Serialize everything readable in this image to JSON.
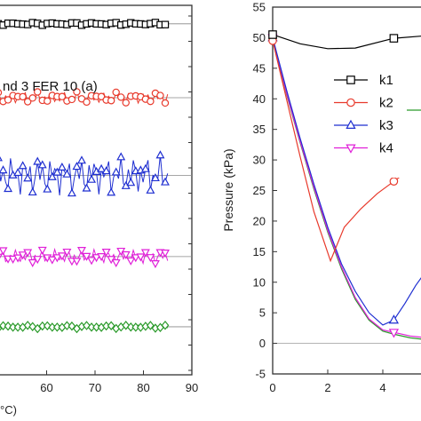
{
  "chart_data": [
    {
      "type": "scatter",
      "title": "",
      "annotation": "nd 3 FER 10 (a)",
      "xlabel": "",
      "x_label_fragment": "°C)",
      "ylabel": "",
      "xlim": [
        50,
        90
      ],
      "x_ticks": [
        60,
        70,
        80,
        90
      ],
      "x_tick_labels": [
        "60",
        "70",
        "80",
        "90"
      ],
      "series": [
        {
          "color": "#000000",
          "marker": "square",
          "level": 95,
          "amp": 0.4,
          "x_start": 50,
          "x_end": 85
        },
        {
          "color": "#e8392b",
          "marker": "circle",
          "level": 75,
          "amp": 1.6,
          "x_start": 50,
          "x_end": 85
        },
        {
          "color": "#1f2fd1",
          "marker": "triangle-up",
          "level": 54,
          "amp": 5.5,
          "x_start": 50,
          "x_end": 85
        },
        {
          "color": "#e020d8",
          "marker": "triangle-down",
          "level": 32,
          "amp": 2.0,
          "x_start": 50,
          "x_end": 85
        },
        {
          "color": "#2a9a2a",
          "marker": "diamond",
          "level": 13,
          "amp": 0.5,
          "x_start": 50,
          "x_end": 85
        }
      ]
    },
    {
      "type": "line",
      "title": "",
      "xlabel": "",
      "ylabel": "Pressure (kPa)",
      "xlim": [
        0,
        6
      ],
      "ylim": [
        -5,
        55
      ],
      "x_ticks": [
        0,
        2,
        4
      ],
      "x_tick_labels": [
        "0",
        "2",
        "4"
      ],
      "y_ticks": [
        -5,
        0,
        5,
        10,
        15,
        20,
        25,
        30,
        35,
        40,
        45,
        50,
        55
      ],
      "y_tick_labels": [
        "-5",
        "0",
        "5",
        "10",
        "15",
        "20",
        "25",
        "30",
        "35",
        "40",
        "45",
        "50",
        "55"
      ],
      "legend_position": "center",
      "series": [
        {
          "name": "k1",
          "color": "#000000",
          "marker": "square",
          "x": [
            0,
            1,
            2,
            3,
            4.4,
            5.8
          ],
          "y": [
            50.5,
            49.0,
            48.2,
            48.3,
            49.9,
            50.4
          ],
          "marker_x": [
            0,
            4.4,
            5.8
          ],
          "marker_y": [
            50.5,
            49.9,
            50.4
          ]
        },
        {
          "name": "k2",
          "color": "#e8392b",
          "marker": "circle",
          "x": [
            0,
            0.5,
            1,
            1.5,
            2.1,
            2.6,
            3.2,
            3.8,
            4.4,
            5.0,
            5.8
          ],
          "y": [
            49.5,
            40.0,
            30.5,
            21.5,
            13.5,
            19.0,
            22.0,
            24.5,
            26.5,
            28.5,
            30.0
          ],
          "marker_x": [
            0,
            4.4,
            5.8
          ],
          "marker_y": [
            49.5,
            26.5,
            30.0
          ]
        },
        {
          "name": "k3",
          "color": "#1f2fd1",
          "marker": "triangle-up",
          "x": [
            0,
            0.5,
            1,
            1.5,
            2,
            2.5,
            3,
            3.5,
            4,
            4.4,
            4.8,
            5.2,
            5.6,
            5.9
          ],
          "y": [
            50.0,
            41.5,
            33.5,
            26.0,
            19.0,
            13.0,
            8.5,
            5.0,
            3.0,
            3.8,
            6.5,
            9.5,
            12.0,
            13.5
          ],
          "marker_x": [
            0,
            4.4
          ],
          "marker_y": [
            50.0,
            3.8
          ]
        },
        {
          "name": "k4",
          "color": "#e020d8",
          "marker": "triangle-down",
          "x": [
            0,
            0.5,
            1,
            1.5,
            2,
            2.5,
            3,
            3.5,
            4,
            4.4,
            5.0,
            5.8
          ],
          "y": [
            50.0,
            41.0,
            33.0,
            25.5,
            18.5,
            12.5,
            7.5,
            4.0,
            2.2,
            1.8,
            1.2,
            0.8
          ],
          "marker_x": [
            0,
            4.4
          ],
          "marker_y": [
            50.0,
            1.8
          ]
        },
        {
          "name": "",
          "color": "#2a9a2a",
          "marker": "diamond",
          "x": [
            0,
            0.5,
            1,
            1.5,
            2,
            2.5,
            3,
            3.5,
            4,
            4.4,
            5.0,
            5.8
          ],
          "y": [
            49.8,
            40.8,
            32.8,
            25.2,
            18.2,
            12.2,
            7.2,
            3.8,
            2.0,
            1.5,
            0.9,
            0.5
          ],
          "marker_x": [
            0
          ],
          "marker_y": [
            49.8
          ]
        }
      ]
    }
  ]
}
